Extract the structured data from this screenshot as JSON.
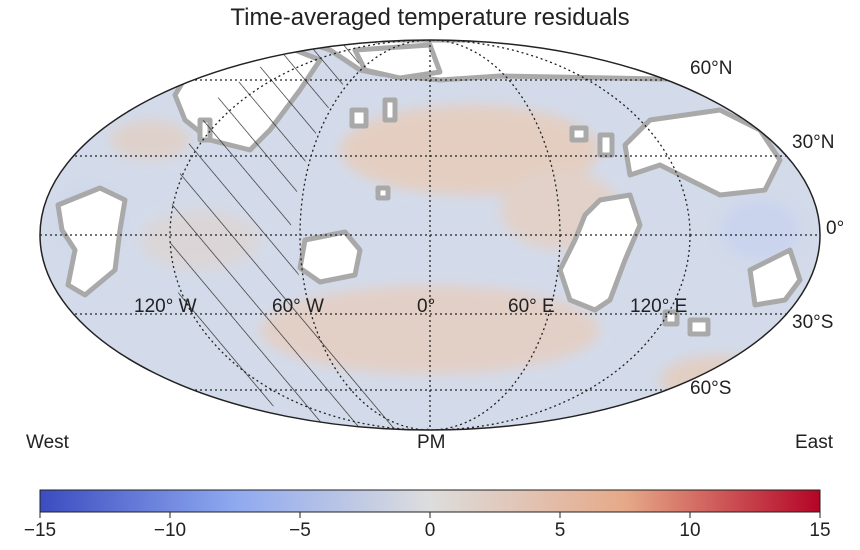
{
  "title": "Time-averaged temperature residuals",
  "map": {
    "projection": "mollweide",
    "lat_labels": [
      "60°N",
      "30°N",
      "0°",
      "30°S",
      "60°S"
    ],
    "lon_labels": [
      "120° W",
      "60° W",
      "0°",
      "60° E",
      "120° E"
    ],
    "pm_label": "PM",
    "west_label": "West",
    "east_label": "East",
    "colors": {
      "ocean": "#cdd9ec",
      "warm": "#e8cfc0",
      "land": "#ffffff",
      "coast": "#b0b0b0",
      "grid": "#222222"
    }
  },
  "colorbar": {
    "ticks": [
      "−15",
      "−10",
      "−5",
      "0",
      "5",
      "10",
      "15"
    ],
    "min": -15,
    "max": 15,
    "colors": [
      "#3b4cc0",
      "#dddddd",
      "#b40426"
    ]
  }
}
